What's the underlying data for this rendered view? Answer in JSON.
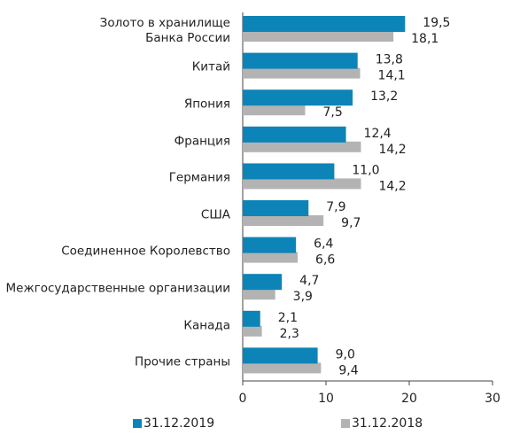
{
  "chart_data": {
    "type": "hbar",
    "categories": [
      "Золото в хранилище\nБанка России",
      "Китай",
      "Япония",
      "Франция",
      "Германия",
      "США",
      "Соединенное Королевство",
      "Межгосударственные организации",
      "Канада",
      "Прочие страны"
    ],
    "series": [
      {
        "name": "31.12.2019",
        "color": "#0d84b7",
        "values": [
          19.5,
          13.8,
          13.2,
          12.4,
          11.0,
          7.9,
          6.4,
          4.7,
          2.1,
          9.0
        ],
        "value_labels": [
          "19,5",
          "13,8",
          "13,2",
          "12,4",
          "11,0",
          "7,9",
          "6,4",
          "4,7",
          "2,1",
          "9,0"
        ]
      },
      {
        "name": "31.12.2018",
        "color": "#b3b3b3",
        "values": [
          18.1,
          14.1,
          7.5,
          14.2,
          14.2,
          9.7,
          6.6,
          3.9,
          2.3,
          9.4
        ],
        "value_labels": [
          "18,1",
          "14,1",
          "7,5",
          "14,2",
          "14,2",
          "9,7",
          "6,6",
          "3,9",
          "2,3",
          "9,4"
        ]
      }
    ],
    "xlim": [
      0,
      30
    ],
    "xticks": [
      0,
      10,
      20,
      30
    ],
    "legend": "bottom"
  }
}
